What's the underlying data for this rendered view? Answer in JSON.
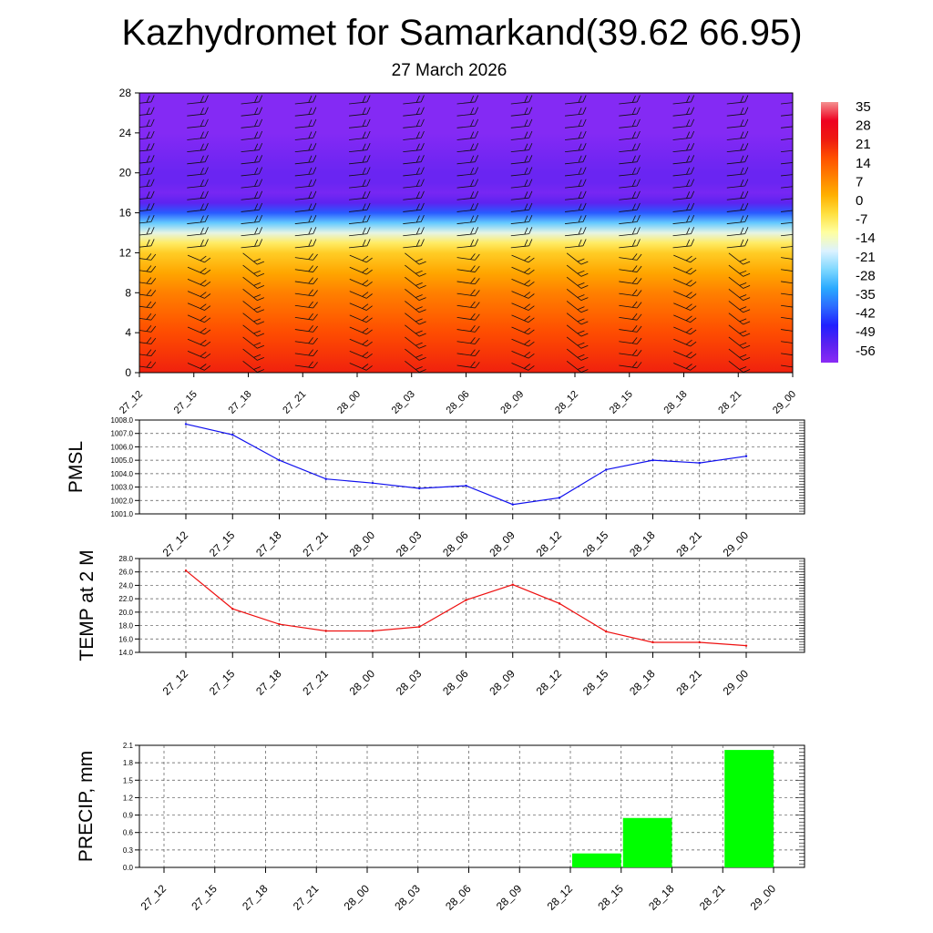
{
  "header": {
    "title": "Kazhydromet for Samarkand(39.62 66.95)",
    "date": "27 March 2026"
  },
  "colors": {
    "pmsl_line": "#1010ee",
    "temp_line": "#ee1010",
    "precip_bar": "#00ff00",
    "colorbar": [
      "#8b2bf5",
      "#5a22f0",
      "#2020ff",
      "#2b6aff",
      "#2aaaff",
      "#7fd8ff",
      "#dcf2ff",
      "#ffffa0",
      "#ffe040",
      "#ffb000",
      "#ff8000",
      "#ff5000",
      "#ee1a10",
      "#ee0020",
      "#f49090"
    ]
  },
  "chart_data": [
    {
      "id": "cross-section",
      "type": "heatmap",
      "ylabel": "",
      "ylim": [
        0,
        28
      ],
      "y_ticks": [
        "0",
        "4",
        "8",
        "12",
        "16",
        "20",
        "24",
        "28"
      ],
      "categories": [
        "27_12",
        "27_15",
        "27_18",
        "27_21",
        "28_00",
        "28_03",
        "28_06",
        "28_09",
        "28_12",
        "28_15",
        "28_18",
        "28_21",
        "29_00"
      ],
      "colorbar_labels": [
        "35",
        "28",
        "21",
        "14",
        "7",
        "0",
        "-7",
        "-14",
        "-21",
        "-28",
        "-35",
        "-42",
        "-49",
        "-56"
      ],
      "value_range": [
        -63,
        42
      ],
      "levels": [
        0,
        2,
        4,
        6,
        8,
        10,
        12,
        13,
        14,
        15,
        16,
        17,
        18,
        19,
        20,
        22,
        24,
        26,
        28
      ],
      "temperature_profile": [
        26,
        23,
        20,
        16,
        12,
        6,
        0,
        -6,
        -16,
        -28,
        -42,
        -56,
        -60,
        -58,
        -58,
        -60,
        -62,
        -62,
        -62
      ],
      "wind_barbs": "shown at every level and time"
    },
    {
      "id": "pmsl",
      "type": "line",
      "ylabel": "PMSL",
      "ylim": [
        1001.0,
        1008.0
      ],
      "y_ticks": [
        "1001.0",
        "1002.0",
        "1003.0",
        "1004.0",
        "1005.0",
        "1006.0",
        "1007.0",
        "1008.0"
      ],
      "categories": [
        "27_12",
        "27_15",
        "27_18",
        "27_21",
        "28_00",
        "28_03",
        "28_06",
        "28_09",
        "28_12",
        "28_15",
        "28_18",
        "28_21",
        "29_00"
      ],
      "values": [
        1007.7,
        1006.9,
        1005.0,
        1003.6,
        1003.3,
        1002.9,
        1003.1,
        1001.7,
        1002.2,
        1004.3,
        1005.0,
        1004.8,
        1005.3
      ]
    },
    {
      "id": "temp",
      "type": "line",
      "ylabel": "TEMP at 2 M",
      "ylim": [
        14.0,
        28.0
      ],
      "y_ticks": [
        "14.0",
        "16.0",
        "18.0",
        "20.0",
        "22.0",
        "24.0",
        "26.0",
        "28.0"
      ],
      "categories": [
        "27_12",
        "27_15",
        "27_18",
        "27_21",
        "28_00",
        "28_03",
        "28_06",
        "28_09",
        "28_12",
        "28_15",
        "28_18",
        "28_21",
        "29_00"
      ],
      "values": [
        26.2,
        20.5,
        18.2,
        17.2,
        17.2,
        17.8,
        21.8,
        24.1,
        21.3,
        17.1,
        15.5,
        15.5,
        15.0
      ]
    },
    {
      "id": "precip",
      "type": "bar",
      "ylabel": "PRECIP, mm",
      "ylim": [
        0.0,
        2.1
      ],
      "y_ticks": [
        "0.0",
        "0.3",
        "0.6",
        "0.9",
        "1.2",
        "1.5",
        "1.8",
        "2.1"
      ],
      "categories": [
        "27_12",
        "27_15",
        "27_18",
        "27_21",
        "28_00",
        "28_03",
        "28_06",
        "28_09",
        "28_12",
        "28_15",
        "28_18",
        "28_21",
        "29_00"
      ],
      "values": [
        0,
        0,
        0,
        0,
        0,
        0,
        0,
        0,
        0,
        0.24,
        0.85,
        0,
        2.02
      ]
    }
  ]
}
